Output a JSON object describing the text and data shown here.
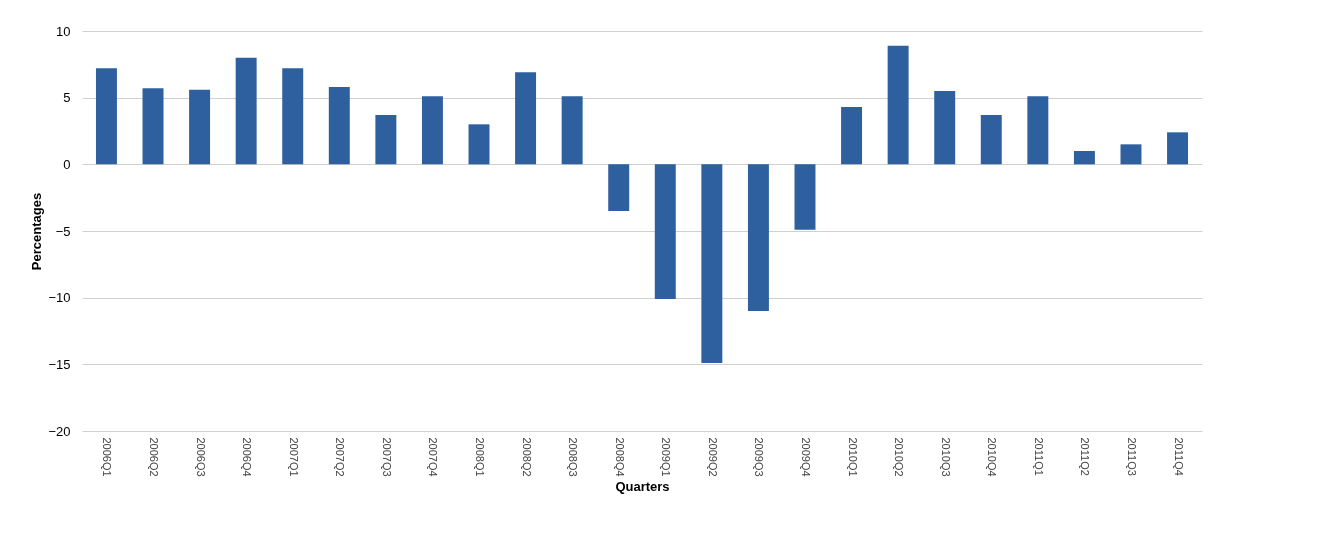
{
  "chart_data": {
    "type": "bar",
    "xlabel": "Quarters",
    "ylabel": "Percentages",
    "categories": [
      "2006Q1",
      "2006Q2",
      "2006Q3",
      "2006Q4",
      "2007Q1",
      "2007Q2",
      "2007Q3",
      "2007Q4",
      "2008Q1",
      "2008Q2",
      "2008Q3",
      "2008Q4",
      "2009Q1",
      "2009Q2",
      "2009Q3",
      "2009Q4",
      "2010Q1",
      "2010Q2",
      "2010Q3",
      "2010Q4",
      "2011Q1",
      "2011Q2",
      "2011Q3",
      "2011Q4"
    ],
    "values": [
      7.2,
      5.7,
      5.6,
      8,
      7.2,
      5.8,
      3.7,
      5.1,
      3,
      6.9,
      5.1,
      -3.5,
      -10.1,
      -14.9,
      -11,
      -4.9,
      4.3,
      8.9,
      5.5,
      3.7,
      5.1,
      1,
      1.5,
      2.4
    ],
    "color": "#2e5f9e",
    "ylim": [
      -20,
      10
    ],
    "yticks": [
      -20,
      -15,
      -10,
      -5,
      0,
      5,
      10
    ],
    "grid": "y"
  }
}
